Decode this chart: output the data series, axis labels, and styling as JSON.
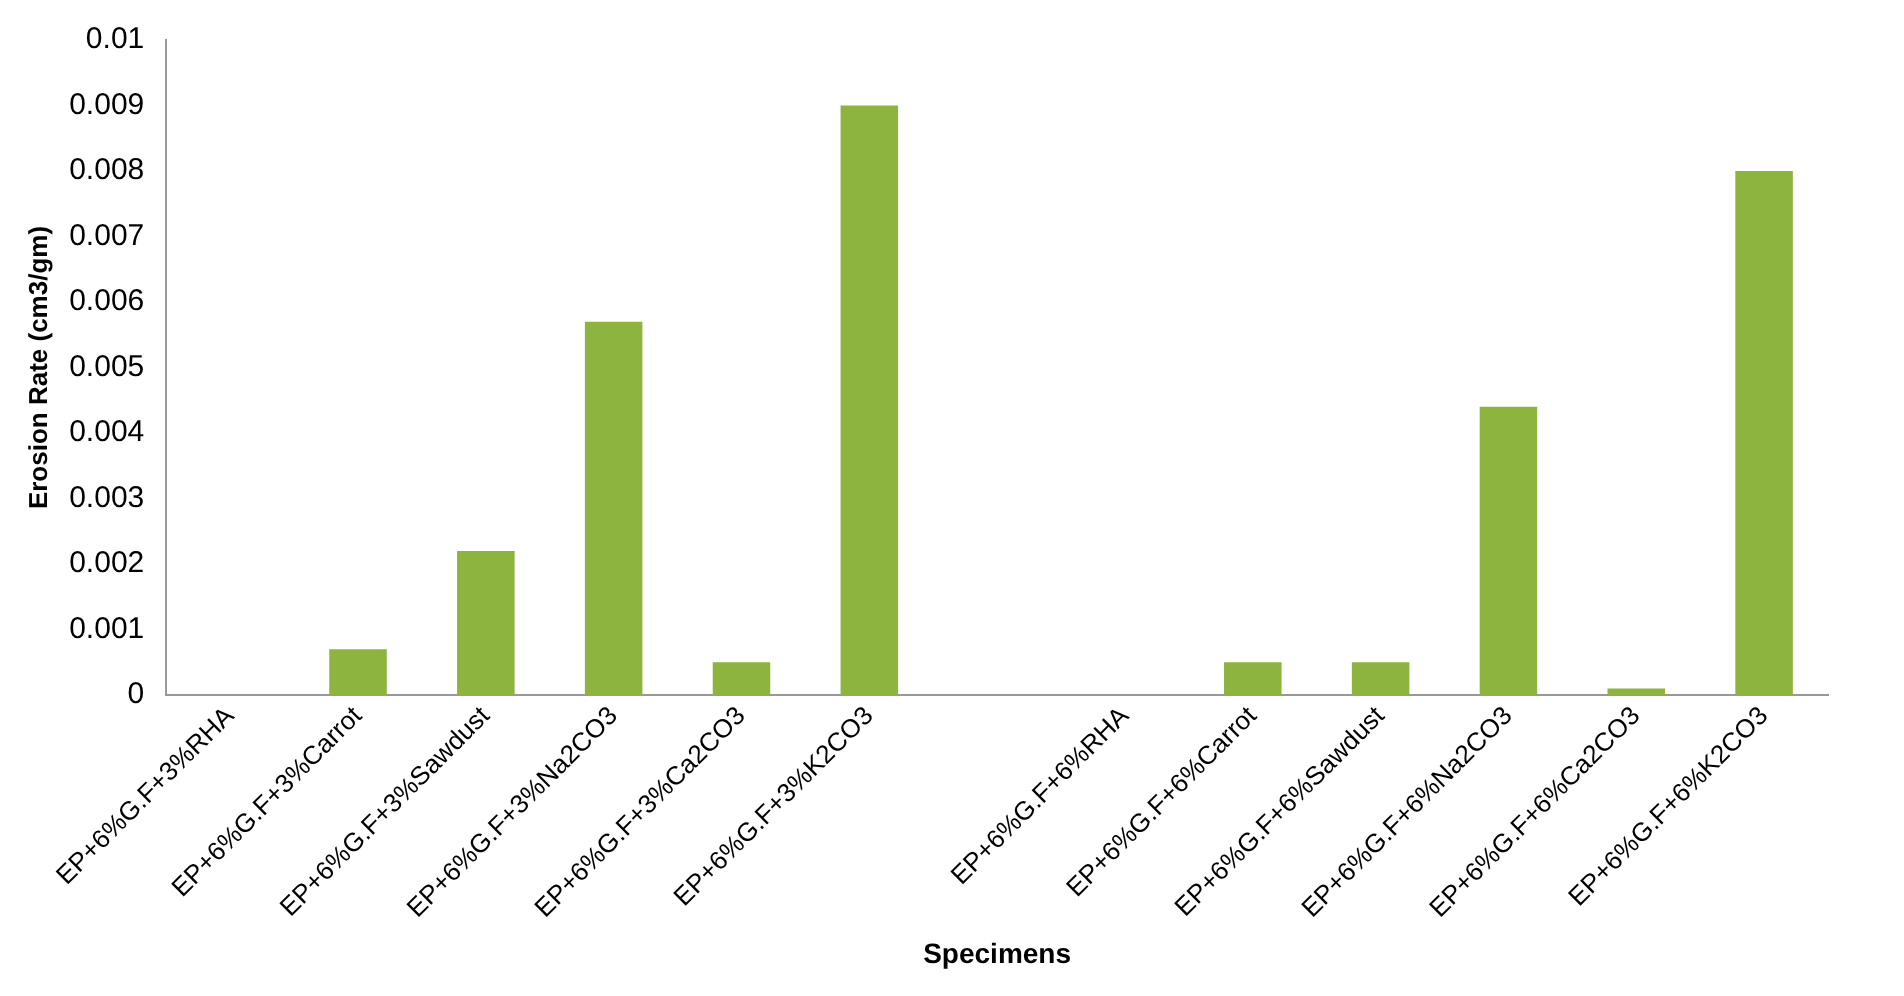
{
  "chart_data": {
    "type": "bar",
    "xlabel": "Specimens",
    "ylabel": "Erosion Rate (cm3/gm)",
    "categories": [
      "EP+6%G.F+3%RHA",
      "EP+6%G.F+3%Carrot",
      "EP+6%G.F+3%Sawdust",
      "EP+6%G.F+3%Na2CO3",
      "EP+6%G.F+3%Ca2CO3",
      "EP+6%G.F+3%K2CO3",
      null,
      "EP+6%G.F+6%RHA",
      "EP+6%G.F+6%Carrot",
      "EP+6%G.F+6%Sawdust",
      "EP+6%G.F+6%Na2CO3",
      "EP+6%G.F+6%Ca2CO3",
      "EP+6%G.F+6%K2CO3"
    ],
    "values": [
      0,
      0.0007,
      0.0022,
      0.0057,
      0.0005,
      0.009,
      null,
      0,
      0.0005,
      0.0005,
      0.0044,
      0.0001,
      0.008
    ],
    "color": "#8db43e",
    "ylim": [
      0,
      0.01
    ],
    "yticks": [
      0,
      0.001,
      0.002,
      0.003,
      0.004,
      0.005,
      0.006,
      0.007,
      0.008,
      0.009,
      0.01
    ],
    "grid": false
  }
}
